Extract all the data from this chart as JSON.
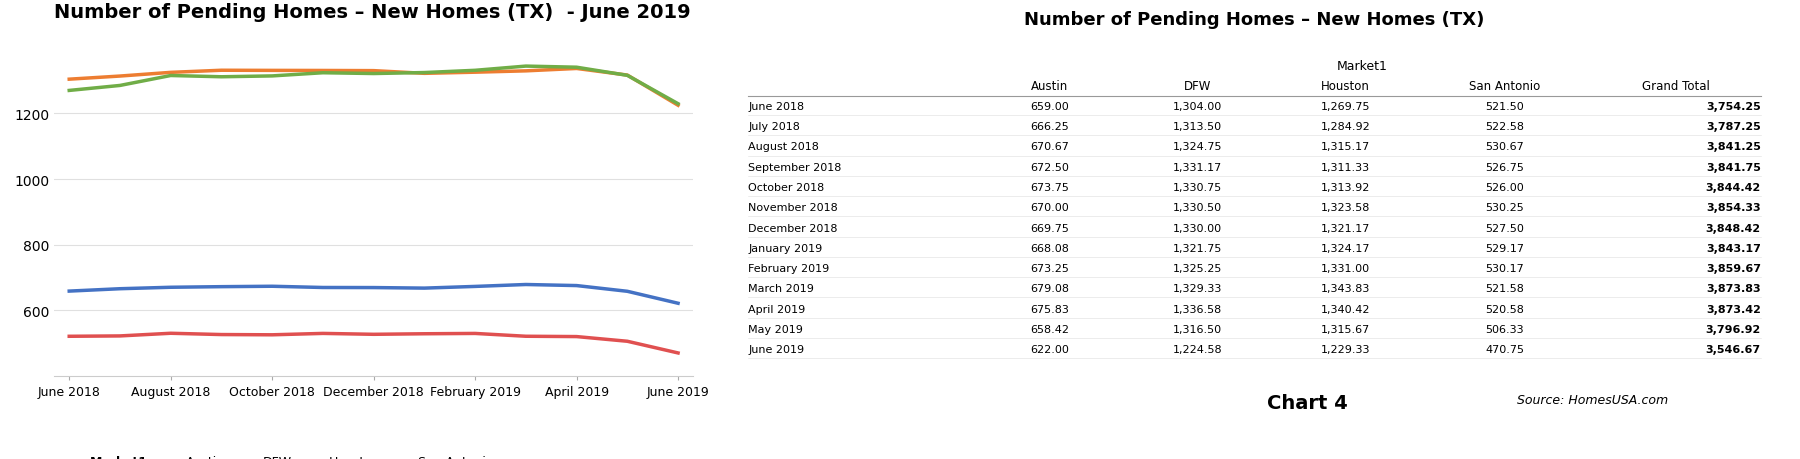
{
  "title_chart": "Number of Pending Homes – New Homes (TX)  - June 2019",
  "title_table": "Number of Pending Homes – New Homes (TX)",
  "months": [
    "June 2018",
    "July 2018",
    "August 2018",
    "September 2018",
    "October 2018",
    "November 2018",
    "December 2018",
    "January 2019",
    "February 2019",
    "March 2019",
    "April 2019",
    "May 2019",
    "June 2019"
  ],
  "austin": [
    659.0,
    666.25,
    670.67,
    672.5,
    673.75,
    670.0,
    669.75,
    668.08,
    673.25,
    679.08,
    675.83,
    658.42,
    622.0
  ],
  "dfw": [
    1304.0,
    1313.5,
    1324.75,
    1331.17,
    1330.75,
    1330.5,
    1330.0,
    1321.75,
    1325.25,
    1329.33,
    1336.58,
    1316.5,
    1224.58
  ],
  "houston": [
    1269.75,
    1284.92,
    1315.17,
    1311.33,
    1313.92,
    1323.58,
    1321.17,
    1324.17,
    1331.0,
    1343.83,
    1340.42,
    1315.67,
    1229.33
  ],
  "san_antonio": [
    521.5,
    522.58,
    530.67,
    526.75,
    526.0,
    530.25,
    527.5,
    529.17,
    530.17,
    521.58,
    520.58,
    506.33,
    470.75
  ],
  "grand_total": [
    3754.25,
    3787.25,
    3841.25,
    3841.75,
    3844.42,
    3854.33,
    3848.42,
    3843.17,
    3859.67,
    3873.83,
    3873.42,
    3796.92,
    3546.67
  ],
  "color_austin": "#4472c4",
  "color_dfw": "#ed7d31",
  "color_houston": "#70ad47",
  "color_san_antonio": "#e05050",
  "xtick_labels": [
    "June 2018",
    "August 2018",
    "October 2018",
    "December 2018",
    "February 2019",
    "April 2019",
    "June 2019"
  ],
  "xtick_indices": [
    0,
    2,
    4,
    6,
    8,
    10,
    12
  ],
  "ylim": [
    400,
    1450
  ],
  "yticks": [
    600,
    800,
    1000,
    1200
  ],
  "chart4_label": "Chart 4",
  "source_label": "Source: HomesUSA.com",
  "bg_color": "#ffffff",
  "grid_color": "#e0e0e0"
}
